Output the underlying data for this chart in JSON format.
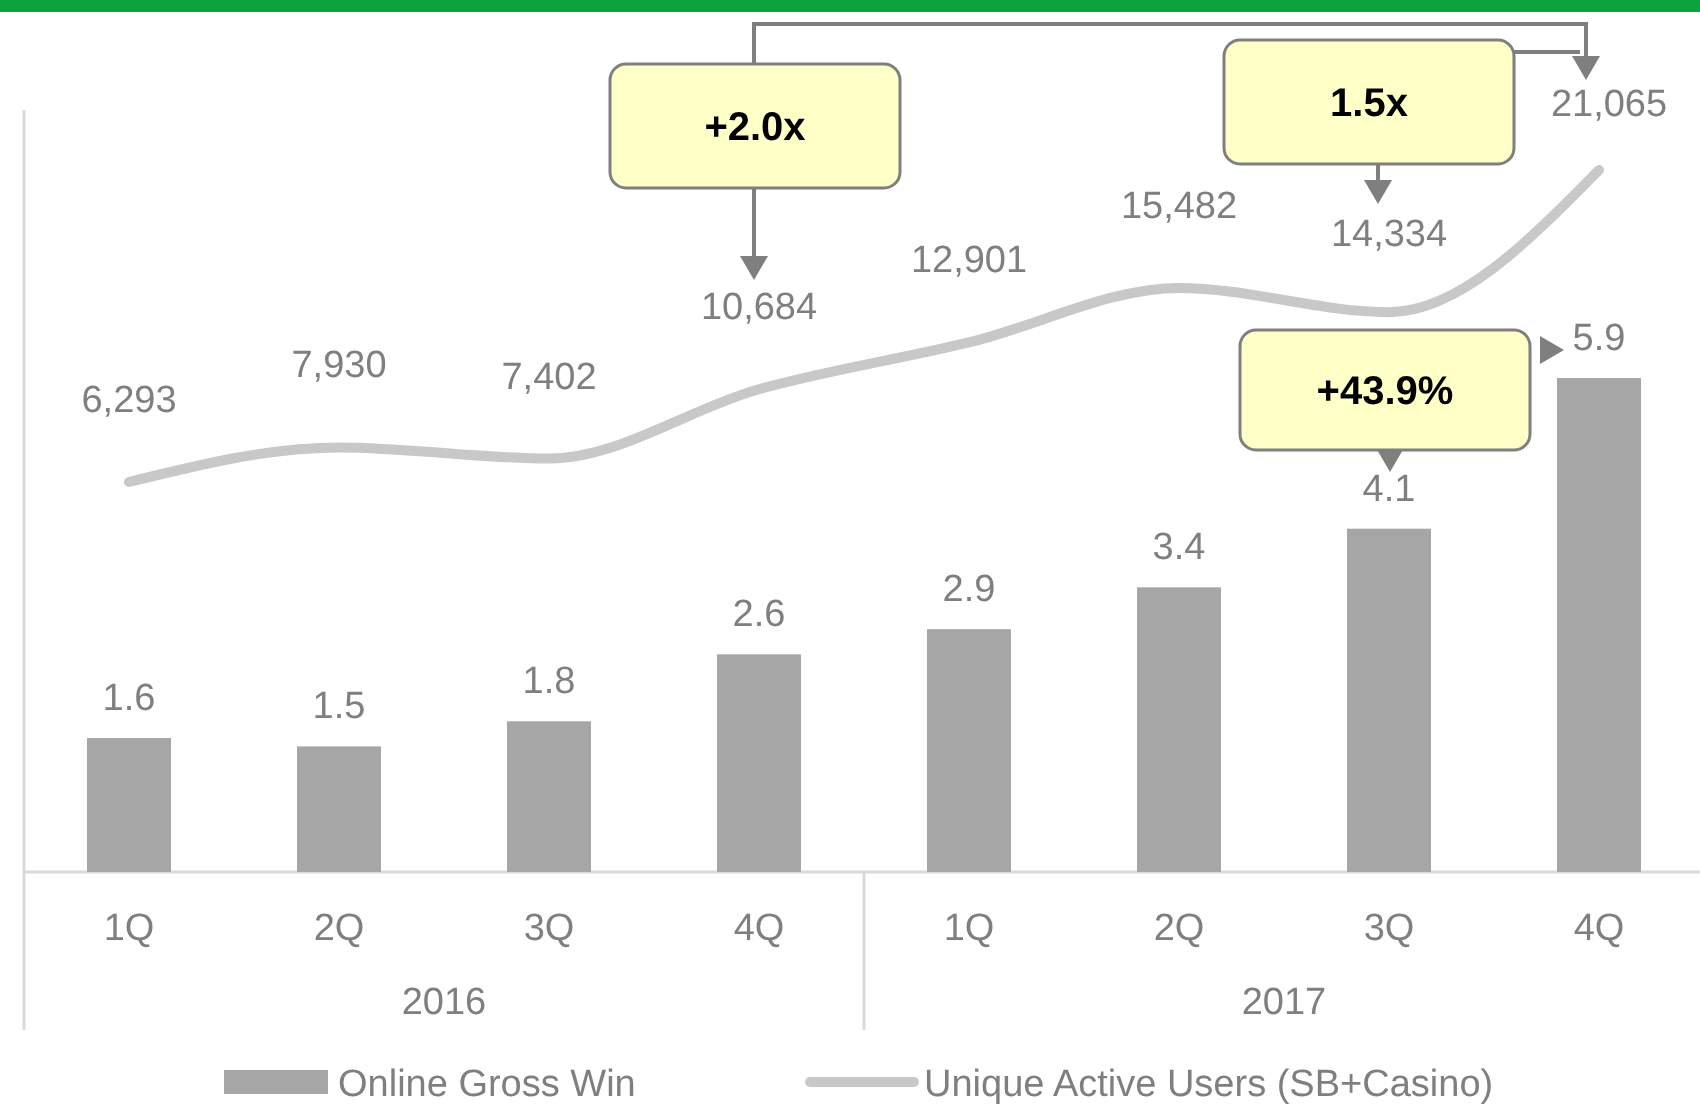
{
  "chart_data": {
    "type": "bar",
    "categories": [
      "1Q",
      "2Q",
      "3Q",
      "4Q",
      "1Q",
      "2Q",
      "3Q",
      "4Q"
    ],
    "series": [
      {
        "name": "Online Gross Win",
        "color": "#a6a6a6",
        "values": [
          1.6,
          1.5,
          1.8,
          2.6,
          2.9,
          3.4,
          4.1,
          5.9
        ]
      },
      {
        "name": "Unique Active Users (SB+Casino)",
        "type": "line",
        "axis": "y2",
        "color": "#c8c8c8",
        "values": [
          6293,
          7930,
          7402,
          10684,
          12901,
          15482,
          14334,
          21065
        ],
        "value_labels": [
          "6,293",
          "7,930",
          "7,402",
          "10,684",
          "12,901",
          "15,482",
          "14,334",
          "21,065"
        ]
      }
    ],
    "annotations": [
      "2016",
      "2017",
      "+2.0x",
      "1.5x",
      "+43.9%"
    ],
    "data_labels": true,
    "legend": "bottom"
  }
}
